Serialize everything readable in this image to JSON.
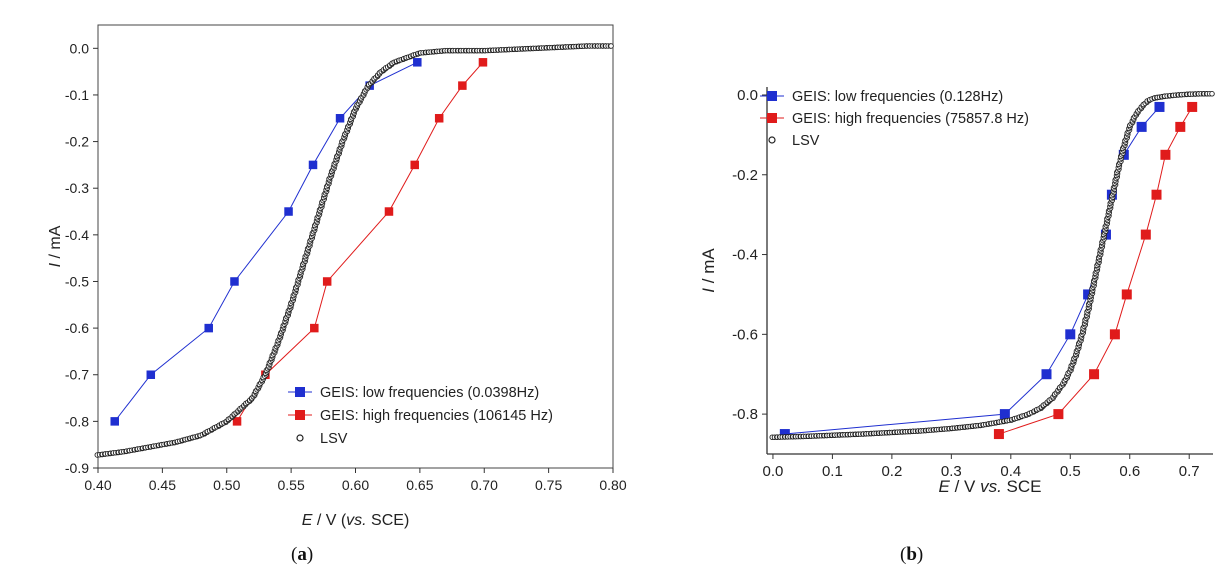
{
  "figure": {
    "label_a": "a",
    "label_b": "b"
  },
  "chart_data": [
    {
      "type": "scatter",
      "panel": "a",
      "xlabel": {
        "italic": "E",
        "mid": " / V (",
        "italic2": "vs.",
        "tail": " SCE)"
      },
      "ylabel": {
        "italic": "I",
        "tail": " / mA"
      },
      "xlim": [
        0.4,
        0.8
      ],
      "ylim": [
        -0.9,
        0.05
      ],
      "xticks": [
        "0.40",
        "0.45",
        "0.50",
        "0.55",
        "0.60",
        "0.65",
        "0.70",
        "0.75",
        "0.80"
      ],
      "yticks": [
        "0.0",
        "-0.1",
        "-0.2",
        "-0.3",
        "-0.4",
        "-0.5",
        "-0.6",
        "-0.7",
        "-0.8",
        "-0.9"
      ],
      "grid": false,
      "legend_position": "bottom-right",
      "series": [
        {
          "name": "GEIS: low frequencies (0.0398Hz)",
          "color": "#1f2fd0",
          "marker": "square",
          "x": [
            0.413,
            0.441,
            0.486,
            0.506,
            0.548,
            0.567,
            0.588,
            0.611,
            0.648
          ],
          "y": [
            -0.8,
            -0.7,
            -0.6,
            -0.5,
            -0.35,
            -0.25,
            -0.15,
            -0.08,
            -0.03
          ]
        },
        {
          "name": "GEIS: high frequencies (106145 Hz)",
          "color": "#e01b1b",
          "marker": "square",
          "x": [
            0.508,
            0.53,
            0.568,
            0.578,
            0.626,
            0.646,
            0.665,
            0.683,
            0.699
          ],
          "y": [
            -0.8,
            -0.7,
            -0.6,
            -0.5,
            -0.35,
            -0.25,
            -0.15,
            -0.08,
            -0.03
          ]
        },
        {
          "name": "LSV",
          "color": "#222222",
          "marker": "open-circle",
          "x": [
            0.4,
            0.42,
            0.44,
            0.46,
            0.48,
            0.5,
            0.52,
            0.53,
            0.54,
            0.55,
            0.56,
            0.57,
            0.58,
            0.59,
            0.6,
            0.61,
            0.62,
            0.63,
            0.64,
            0.65,
            0.67,
            0.7,
            0.74,
            0.78,
            0.8
          ],
          "y": [
            -0.872,
            -0.865,
            -0.855,
            -0.845,
            -0.83,
            -0.8,
            -0.75,
            -0.7,
            -0.63,
            -0.55,
            -0.46,
            -0.37,
            -0.28,
            -0.2,
            -0.13,
            -0.08,
            -0.05,
            -0.03,
            -0.02,
            -0.01,
            -0.005,
            -0.005,
            0.0,
            0.005,
            0.005
          ]
        }
      ]
    },
    {
      "type": "scatter",
      "panel": "b",
      "xlabel": {
        "italic": "E",
        "mid": " / V ",
        "italic2": "vs.",
        "tail": " SCE"
      },
      "ylabel": {
        "italic": "I",
        "tail": " / mA"
      },
      "xlim": [
        -0.01,
        0.74
      ],
      "ylim": [
        -0.9,
        0.02
      ],
      "xticks": [
        "0.0",
        "0.1",
        "0.2",
        "0.3",
        "0.4",
        "0.5",
        "0.6",
        "0.7"
      ],
      "yticks": [
        "0.0",
        "-0.2",
        "-0.4",
        "-0.6",
        "-0.8"
      ],
      "grid": false,
      "legend_position": "top-left",
      "series": [
        {
          "name": "GEIS: low frequencies (0.128Hz)",
          "color": "#1f2fd0",
          "marker": "square",
          "x": [
            0.02,
            0.39,
            0.46,
            0.5,
            0.53,
            0.56,
            0.57,
            0.59,
            0.62,
            0.65
          ],
          "y": [
            -0.85,
            -0.8,
            -0.7,
            -0.6,
            -0.5,
            -0.35,
            -0.25,
            -0.15,
            -0.08,
            -0.03
          ]
        },
        {
          "name": "GEIS: high frequencies (75857.8 Hz)",
          "color": "#e01b1b",
          "marker": "square",
          "x": [
            0.38,
            0.48,
            0.54,
            0.575,
            0.595,
            0.627,
            0.645,
            0.66,
            0.685,
            0.705
          ],
          "y": [
            -0.85,
            -0.8,
            -0.7,
            -0.6,
            -0.5,
            -0.35,
            -0.25,
            -0.15,
            -0.08,
            -0.03
          ]
        },
        {
          "name": "LSV",
          "color": "#222222",
          "marker": "open-circle",
          "x": [
            0.0,
            0.05,
            0.1,
            0.15,
            0.2,
            0.25,
            0.3,
            0.35,
            0.4,
            0.43,
            0.45,
            0.47,
            0.49,
            0.5,
            0.51,
            0.52,
            0.53,
            0.54,
            0.55,
            0.56,
            0.57,
            0.58,
            0.59,
            0.6,
            0.61,
            0.62,
            0.63,
            0.64,
            0.66,
            0.68,
            0.7,
            0.72,
            0.74
          ],
          "y": [
            -0.858,
            -0.856,
            -0.853,
            -0.85,
            -0.846,
            -0.842,
            -0.836,
            -0.828,
            -0.815,
            -0.8,
            -0.785,
            -0.76,
            -0.72,
            -0.69,
            -0.65,
            -0.6,
            -0.54,
            -0.47,
            -0.4,
            -0.33,
            -0.26,
            -0.19,
            -0.13,
            -0.08,
            -0.05,
            -0.03,
            -0.015,
            -0.008,
            -0.003,
            0.0,
            0.002,
            0.003,
            0.003
          ]
        }
      ]
    }
  ]
}
